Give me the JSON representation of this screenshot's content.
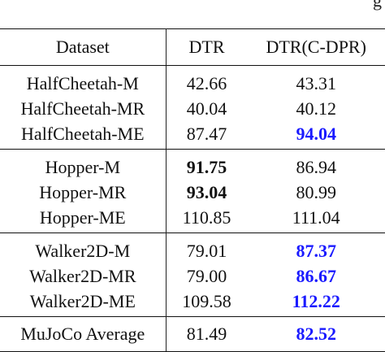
{
  "colors": {
    "improved": "#1a1aff",
    "text": "#111111"
  },
  "fragment": "g",
  "header": {
    "dataset": "Dataset",
    "dtr": "DTR",
    "cdpr": "DTR(C-DPR)"
  },
  "groups": [
    {
      "rows": [
        {
          "dataset": "HalfCheetah-M",
          "dtr": "42.66",
          "cdpr": "43.31",
          "dtr_style": "normal",
          "cdpr_style": "normal"
        },
        {
          "dataset": "HalfCheetah-MR",
          "dtr": "40.04",
          "cdpr": "40.12",
          "dtr_style": "normal",
          "cdpr_style": "normal"
        },
        {
          "dataset": "HalfCheetah-ME",
          "dtr": "87.47",
          "cdpr": "94.04",
          "dtr_style": "normal",
          "cdpr_style": "improved"
        }
      ]
    },
    {
      "rows": [
        {
          "dataset": "Hopper-M",
          "dtr": "91.75",
          "cdpr": "86.94",
          "dtr_style": "best",
          "cdpr_style": "normal"
        },
        {
          "dataset": "Hopper-MR",
          "dtr": "93.04",
          "cdpr": "80.99",
          "dtr_style": "best",
          "cdpr_style": "normal"
        },
        {
          "dataset": "Hopper-ME",
          "dtr": "110.85",
          "cdpr": "111.04",
          "dtr_style": "normal",
          "cdpr_style": "normal"
        }
      ]
    },
    {
      "rows": [
        {
          "dataset": "Walker2D-M",
          "dtr": "79.01",
          "cdpr": "87.37",
          "dtr_style": "normal",
          "cdpr_style": "improved"
        },
        {
          "dataset": "Walker2D-MR",
          "dtr": "79.00",
          "cdpr": "86.67",
          "dtr_style": "normal",
          "cdpr_style": "improved"
        },
        {
          "dataset": "Walker2D-ME",
          "dtr": "109.58",
          "cdpr": "112.22",
          "dtr_style": "normal",
          "cdpr_style": "improved"
        }
      ]
    }
  ],
  "average": {
    "dataset": "MuJoCo Average",
    "dtr": "81.49",
    "cdpr": "82.52",
    "dtr_style": "normal",
    "cdpr_style": "improved"
  }
}
